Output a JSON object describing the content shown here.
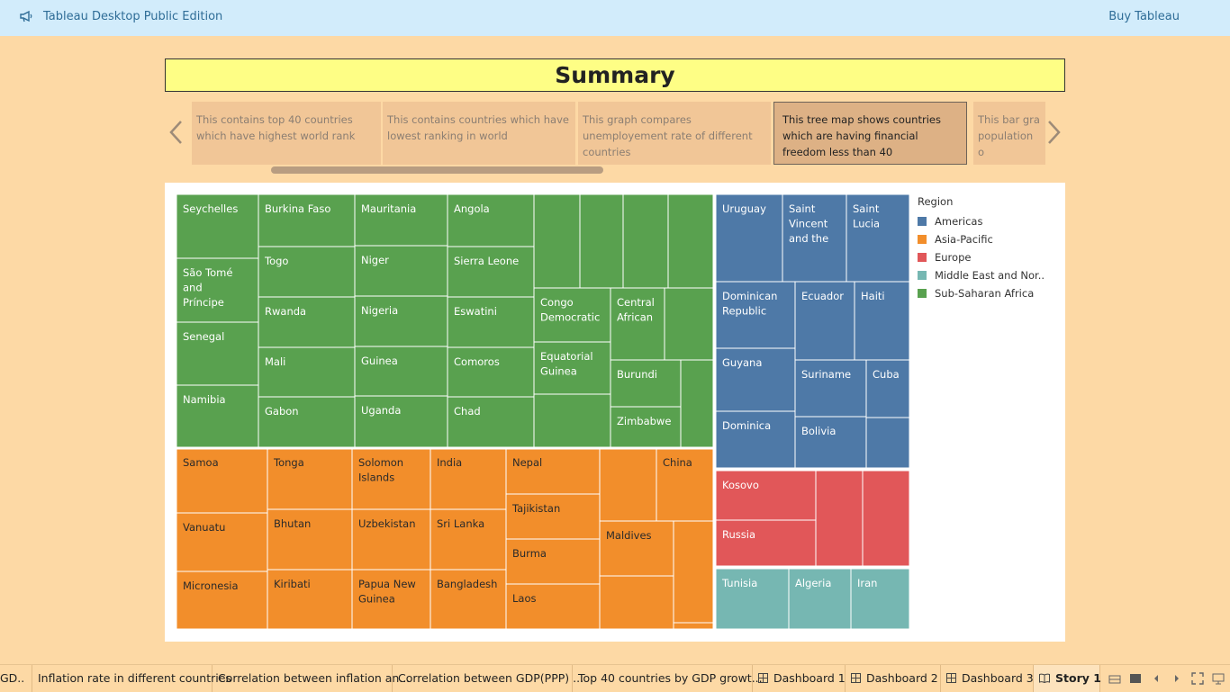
{
  "app": {
    "title": "Tableau Desktop Public Edition",
    "buy_label": "Buy Tableau"
  },
  "story": {
    "title": "Summary",
    "points": [
      "This contains top 40 countries which have highest world rank",
      "This contains countries which have lowest ranking in world",
      "This graph compares unemployement rate of different countries",
      "This tree map shows countries which are having financial freedom less than 40",
      "This bar gra population o"
    ],
    "active_point": 3
  },
  "legend": {
    "title": "Region",
    "items": [
      {
        "name": "Americas",
        "color": "#4e79a7"
      },
      {
        "name": "Asia-Pacific",
        "color": "#f28e2b"
      },
      {
        "name": "Europe",
        "color": "#e15759"
      },
      {
        "name": "Middle East and Nor..",
        "color": "#76b7b2"
      },
      {
        "name": "Sub-Saharan Africa",
        "color": "#59a14f"
      }
    ]
  },
  "chart_data": {
    "type": "treemap",
    "title": "",
    "color_field": "Region",
    "groups": [
      {
        "region": "Sub-Saharan Africa",
        "color": "#59a14f",
        "labels": [
          "Seychelles",
          "São Tomé and Príncipe",
          "Senegal",
          "Namibia",
          "Burkina Faso",
          "Togo",
          "Rwanda",
          "Mali",
          "Gabon",
          "Mauritania",
          "Niger",
          "Nigeria",
          "Guinea",
          "Uganda",
          "Angola",
          "Sierra Leone",
          "Eswatini",
          "Comoros",
          "Chad",
          "Congo Democratic",
          "Equatorial Guinea",
          "Central African",
          "Burundi",
          "Zimbabwe"
        ]
      },
      {
        "region": "Asia-Pacific",
        "color": "#f28e2b",
        "labels": [
          "Samoa",
          "Vanuatu",
          "Micronesia",
          "Tonga",
          "Bhutan",
          "Kiribati",
          "Solomon Islands",
          "Uzbekistan",
          "Papua New Guinea",
          "India",
          "Sri Lanka",
          "Bangladesh",
          "Nepal",
          "Tajikistan",
          "Burma",
          "Laos",
          "China",
          "Maldives"
        ]
      },
      {
        "region": "Americas",
        "color": "#4e79a7",
        "labels": [
          "Uruguay",
          "Saint Vincent and the",
          "Saint Lucia",
          "Dominican Republic",
          "Ecuador",
          "Haiti",
          "Guyana",
          "Suriname",
          "Cuba",
          "Dominica",
          "Bolivia"
        ]
      },
      {
        "region": "Europe",
        "color": "#e15759",
        "labels": [
          "Kosovo",
          "Russia"
        ]
      },
      {
        "region": "Middle East and Nor..",
        "color": "#76b7b2",
        "labels": [
          "Tunisia",
          "Algeria",
          "Iran"
        ]
      }
    ]
  },
  "tabs": [
    {
      "label": "GD..",
      "kind": "sheet"
    },
    {
      "label": "Inflation rate in different countries",
      "kind": "sheet"
    },
    {
      "label": "Correlation between inflation an...",
      "kind": "sheet"
    },
    {
      "label": "Correlation between GDP(PPP) ...",
      "kind": "sheet"
    },
    {
      "label": "Top 40 countries by GDP growt...",
      "kind": "sheet"
    },
    {
      "label": "Dashboard 1",
      "kind": "dashboard"
    },
    {
      "label": "Dashboard 2",
      "kind": "dashboard"
    },
    {
      "label": "Dashboard 3",
      "kind": "dashboard"
    },
    {
      "label": "Story 1",
      "kind": "story",
      "active": true
    }
  ]
}
